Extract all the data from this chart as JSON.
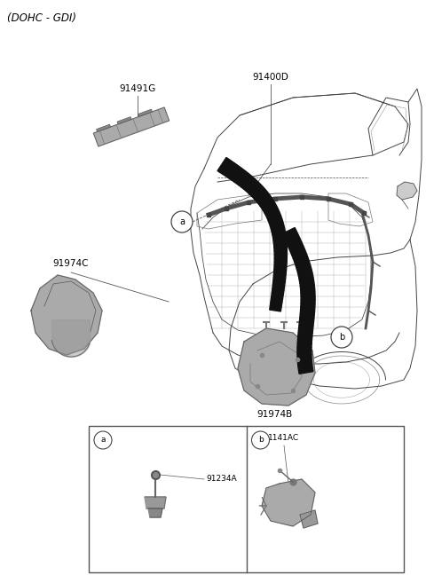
{
  "title": "(DOHC - GDI)",
  "bg_color": "#ffffff",
  "text_color": "#000000",
  "label_91491G": "91491G",
  "label_91400D": "91400D",
  "label_91974C": "91974C",
  "label_91974B": "91974B",
  "label_91234A": "91234A",
  "label_1141AC": "1141AC",
  "line_color": "#555555",
  "part_fill": "#999999",
  "part_dark": "#777777",
  "part_light": "#bbbbbb",
  "black_arrow": "#111111"
}
